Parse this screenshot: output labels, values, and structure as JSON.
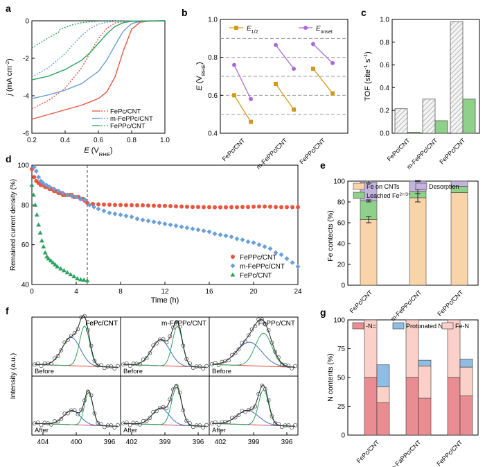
{
  "panel_labels": {
    "a": "a",
    "b": "b",
    "c": "c",
    "d": "d",
    "e": "e",
    "f": "f",
    "g": "g"
  },
  "colors": {
    "red": "#e8553e",
    "blue": "#6a9fd8",
    "green": "#2ca25f",
    "orange": "#d09b1c",
    "purple": "#a86cd6",
    "hatch": "#b5b5b5",
    "green_bar": "#8fd18a",
    "peach": "#f9d4a8",
    "lavender": "#c3b3dd",
    "pink": "#ea8d92",
    "lightblue": "#8fbde3",
    "lightpink": "#fad0c8",
    "dash": "#9a9a9a"
  },
  "chart_data": [
    {
      "panel": "a",
      "type": "line",
      "xlabel_main": "E",
      "xlabel_sub": "(V",
      "xlabel_subscript": "RHE",
      "xlabel_close": ")",
      "ylabel_main": "j",
      "ylabel_unit": "(mA cm",
      "ylabel_sup": "-2",
      "ylabel_close": ")",
      "xlim": [
        0.2,
        1.0
      ],
      "ylim": [
        -6,
        0
      ],
      "xticks": [
        "0.2",
        "0.4",
        "0.6",
        "0.8",
        "1.0"
      ],
      "yticks": [
        "0",
        "-2",
        "-4",
        "-6"
      ],
      "legend": [
        "FePc/CNT",
        "m-FePPc/CNT",
        "FePPc/CNT"
      ],
      "series": [
        {
          "name": "FePc/CNT ORR",
          "style": "solid",
          "color_key": "red",
          "x": [
            0.2,
            0.3,
            0.4,
            0.5,
            0.6,
            0.65,
            0.7,
            0.75,
            0.8,
            0.85,
            0.9,
            1.0
          ],
          "y": [
            -5.25,
            -5.0,
            -4.75,
            -4.5,
            -4.15,
            -3.8,
            -3.0,
            -1.6,
            -0.45,
            -0.08,
            -0.02,
            0
          ]
        },
        {
          "name": "FePc/CNT stability",
          "style": "dotted",
          "color_key": "red",
          "x": [
            0.2,
            0.3,
            0.4,
            0.5,
            0.55,
            0.6,
            0.65,
            0.7,
            0.75,
            0.8,
            1.0
          ],
          "y": [
            -4.7,
            -4.25,
            -3.6,
            -2.5,
            -1.7,
            -0.95,
            -0.4,
            -0.12,
            -0.04,
            -0.01,
            0
          ]
        },
        {
          "name": "m-FePPc/CNT ORR",
          "style": "solid",
          "color_key": "blue",
          "x": [
            0.2,
            0.3,
            0.4,
            0.5,
            0.6,
            0.65,
            0.7,
            0.75,
            0.8,
            0.85,
            0.9,
            1.0
          ],
          "y": [
            -4.15,
            -3.95,
            -3.7,
            -3.35,
            -2.7,
            -2.1,
            -1.3,
            -0.55,
            -0.15,
            -0.04,
            -0.01,
            0
          ]
        },
        {
          "name": "m-FePPc/CNT stability",
          "style": "dotted",
          "color_key": "blue",
          "x": [
            0.2,
            0.3,
            0.4,
            0.45,
            0.5,
            0.55,
            0.6,
            0.65,
            0.7,
            0.8,
            1.0
          ],
          "y": [
            -3.0,
            -2.5,
            -1.75,
            -1.25,
            -0.78,
            -0.42,
            -0.18,
            -0.07,
            -0.03,
            -0.01,
            0
          ]
        },
        {
          "name": "FePPc/CNT ORR",
          "style": "solid",
          "color_key": "green",
          "x": [
            0.2,
            0.3,
            0.4,
            0.5,
            0.55,
            0.6,
            0.65,
            0.7,
            0.75,
            0.8,
            0.9,
            1.0
          ],
          "y": [
            -3.15,
            -2.95,
            -2.6,
            -2.1,
            -1.7,
            -1.2,
            -0.7,
            -0.3,
            -0.1,
            -0.03,
            -0.01,
            0
          ]
        },
        {
          "name": "FePPc/CNT stability",
          "style": "dotted",
          "color_key": "green",
          "x": [
            0.2,
            0.3,
            0.36,
            0.37,
            0.4,
            0.45,
            0.5,
            0.55,
            0.6,
            0.7,
            1.0
          ],
          "y": [
            -1.45,
            -0.9,
            -0.62,
            -0.45,
            -0.35,
            -0.2,
            -0.1,
            -0.05,
            -0.02,
            -0.01,
            0
          ]
        }
      ]
    },
    {
      "panel": "b",
      "type": "scatter",
      "ylabel_main": "E",
      "ylabel_sub": "(V",
      "ylabel_subscript": "RHE",
      "ylabel_close": ")",
      "ylim": [
        0.4,
        1.0
      ],
      "yticks": [
        "0.4",
        "0.6",
        "0.8",
        "1.0"
      ],
      "dashed_lines": [
        0.5,
        0.6,
        0.7,
        0.8,
        0.9
      ],
      "categories": [
        "FePc/CNT",
        "m-FePPc/CNT",
        "FePPc/CNT"
      ],
      "legend_half_main": "E",
      "legend_half_sub": "1/2",
      "legend_onset_main": "E",
      "legend_onset_sub": "onset",
      "series": [
        {
          "name": "E1/2",
          "color_key": "orange",
          "pairs": [
            [
              0.6,
              0.46
            ],
            [
              0.66,
              0.525
            ],
            [
              0.74,
              0.61
            ]
          ]
        },
        {
          "name": "Eonset",
          "color_key": "purple",
          "pairs": [
            [
              0.76,
              0.58
            ],
            [
              0.865,
              0.74
            ],
            [
              0.87,
              0.77
            ]
          ]
        }
      ]
    },
    {
      "panel": "c",
      "type": "bar",
      "ylabel_main": "TOF (site",
      "ylabel_sup1": "-1",
      "ylabel_mid": " s",
      "ylabel_sup2": "-1",
      "ylabel_close": ")",
      "ylim": [
        0,
        1.0
      ],
      "yticks": [
        "0.0",
        "0.2",
        "0.4",
        "0.6",
        "0.8",
        "1.0"
      ],
      "categories": [
        "FePc/CNT",
        "m-FePPc/CNT",
        "FePPc/CNT"
      ],
      "series": [
        {
          "name": "initial",
          "fill": "hatch",
          "values": [
            0.215,
            0.3,
            0.98
          ]
        },
        {
          "name": "after",
          "fill": "green_bar",
          "values": [
            0.01,
            0.11,
            0.3
          ]
        }
      ]
    },
    {
      "panel": "d",
      "type": "scatter",
      "xlabel": "Time (h)",
      "ylabel": "Remained current density (%)",
      "xlim": [
        0,
        24
      ],
      "ylim": [
        40,
        100
      ],
      "xticks": [
        "0",
        "4",
        "8",
        "12",
        "16",
        "20",
        "24"
      ],
      "yticks": [
        "40",
        "60",
        "80",
        "100"
      ],
      "vline": 5,
      "legend": [
        "FePPc/CNT",
        "m-FePPc/CNT",
        "FePc/CNT"
      ],
      "series": [
        {
          "name": "FePPc/CNT",
          "marker": "circle",
          "color_key": "red",
          "x": [
            0,
            0.2,
            0.4,
            0.6,
            0.8,
            1,
            1.2,
            1.4,
            1.6,
            1.8,
            2,
            2.2,
            2.4,
            2.6,
            2.8,
            3,
            3.2,
            3.4,
            3.6,
            3.8,
            4,
            4.2,
            4.4,
            4.6,
            4.8,
            5,
            5.5,
            6,
            6.5,
            7,
            7.5,
            8,
            8.5,
            9,
            9.5,
            10,
            10.5,
            11,
            11.5,
            12,
            12.5,
            13,
            13.5,
            14,
            14.5,
            15,
            15.5,
            16,
            16.5,
            17,
            17.5,
            18,
            18.5,
            19,
            19.5,
            20,
            20.5,
            21,
            21.5,
            22,
            22.5,
            23,
            23.5,
            24
          ],
          "y": [
            98,
            94,
            92,
            91,
            90,
            90,
            89,
            89,
            88,
            88,
            87,
            87,
            86,
            86,
            85,
            85,
            85,
            85,
            85,
            84,
            84,
            84,
            83,
            83,
            82,
            81,
            80.5,
            80.3,
            80.2,
            80.1,
            80,
            80,
            79.9,
            79.9,
            79.8,
            79.8,
            79.7,
            79.6,
            79.5,
            79.5,
            79.4,
            79.3,
            79.2,
            79.1,
            79,
            79,
            78.9,
            78.9,
            78.8,
            78.8,
            78.8,
            78.9,
            78.9,
            79,
            79,
            79.1,
            79.2,
            79.2,
            79.1,
            79,
            78.9,
            78.9,
            78.9,
            78.9
          ]
        },
        {
          "name": "m-FePPc/CNT",
          "marker": "diamond",
          "color_key": "blue",
          "x": [
            0.2,
            0.4,
            0.6,
            0.8,
            1,
            1.3,
            1.6,
            2,
            2.4,
            2.8,
            3.2,
            3.6,
            4,
            4.4,
            4.8,
            5.2,
            5.6,
            6,
            6.5,
            7,
            7.5,
            8,
            8.5,
            9,
            9.5,
            10,
            10.5,
            11,
            11.5,
            12,
            12.5,
            13,
            13.5,
            14,
            14.5,
            15,
            15.5,
            16,
            16.5,
            17,
            17.5,
            18,
            18.5,
            19,
            19.5,
            20,
            20.5,
            21,
            21.5,
            22,
            22.5,
            23,
            23.5,
            24
          ],
          "y": [
            99,
            97,
            94,
            92,
            91,
            90,
            89,
            88,
            87,
            86,
            85,
            84.5,
            84,
            83,
            82.5,
            80,
            79,
            78,
            77,
            76,
            75.5,
            75,
            74.5,
            74,
            73,
            72.5,
            72,
            71.5,
            71,
            70.5,
            70,
            69.5,
            69,
            68.5,
            68,
            67.5,
            67,
            66.5,
            65.5,
            65,
            64.5,
            64,
            63,
            62.5,
            61.5,
            61,
            60,
            59,
            58,
            56,
            55,
            53,
            51,
            49
          ]
        },
        {
          "name": "FePc/CNT",
          "marker": "triangle",
          "color_key": "green",
          "x": [
            0,
            0.15,
            0.3,
            0.45,
            0.6,
            0.75,
            0.9,
            1.05,
            1.2,
            1.35,
            1.5,
            1.7,
            1.9,
            2.1,
            2.3,
            2.6,
            2.9,
            3.2,
            3.5,
            3.8,
            4.1,
            4.4,
            4.7,
            5
          ],
          "y": [
            90,
            85,
            80,
            75,
            70,
            66,
            62,
            59,
            56,
            54,
            53,
            52,
            51,
            50,
            49,
            48,
            47,
            46,
            45,
            44,
            43,
            42.5,
            42.3,
            42
          ]
        }
      ]
    },
    {
      "panel": "e",
      "type": "bar",
      "ylabel": "Fe contects (%)",
      "ylim": [
        0,
        100
      ],
      "yticks": [
        "0",
        "20",
        "40",
        "60",
        "80",
        "100"
      ],
      "categories": [
        "FePc/CNT",
        "m-FePPc/CNT",
        "FePPc/CNT"
      ],
      "legend_fe_on_cnts": "Fe on CNTs",
      "legend_desorption": "Desorption",
      "legend_leached_main": "Leached Fe",
      "legend_leached_sup": "2+/3+",
      "series": [
        {
          "name": "Fe on CNTs",
          "color_key": "peach",
          "values": [
            63,
            84,
            89
          ]
        },
        {
          "name": "Leached Fe2+/3+",
          "color_key": "green_bar",
          "values": [
            18,
            6,
            6
          ]
        },
        {
          "name": "Desorption",
          "color_key": "lavender",
          "values": [
            18,
            10,
            5
          ]
        }
      ]
    },
    {
      "panel": "f",
      "type": "line",
      "ylabel": "Intensity (a.u.)",
      "columns": [
        {
          "title": "FePc/CNT",
          "xticks": [
            "404",
            "400",
            "396"
          ]
        },
        {
          "title": "m-FePPc/CNT",
          "xticks": [
            "402",
            "399",
            "396"
          ]
        },
        {
          "title": "FePPc/CNT",
          "xticks": [
            "402",
            "399",
            "396"
          ]
        }
      ],
      "row_labels": [
        "Before",
        "After"
      ]
    },
    {
      "panel": "g",
      "type": "bar",
      "ylabel": "N contents (%)",
      "ylim": [
        0,
        100
      ],
      "yticks": [
        "0",
        "25",
        "50",
        "75",
        "100"
      ],
      "categories": [
        "FePc/CNT",
        "m-FaPPc/CNT",
        "FePPc/CNT"
      ],
      "legend": [
        "-N=",
        "Protonated N",
        "Fe-N"
      ],
      "series_before": [
        {
          "name": "-N=",
          "color_key": "pink",
          "values": [
            50,
            50,
            50
          ]
        },
        {
          "name": "Fe-N",
          "color_key": "lightpink",
          "values": [
            50,
            50,
            50
          ]
        }
      ],
      "series_after": [
        {
          "name": "-N=",
          "color_key": "pink",
          "values": [
            28,
            32,
            34
          ]
        },
        {
          "name": "Fe-N",
          "color_key": "lightpink",
          "values": [
            14,
            28,
            25
          ]
        },
        {
          "name": "Protonated N",
          "color_key": "lightblue",
          "values": [
            19,
            5,
            7
          ]
        }
      ]
    }
  ]
}
